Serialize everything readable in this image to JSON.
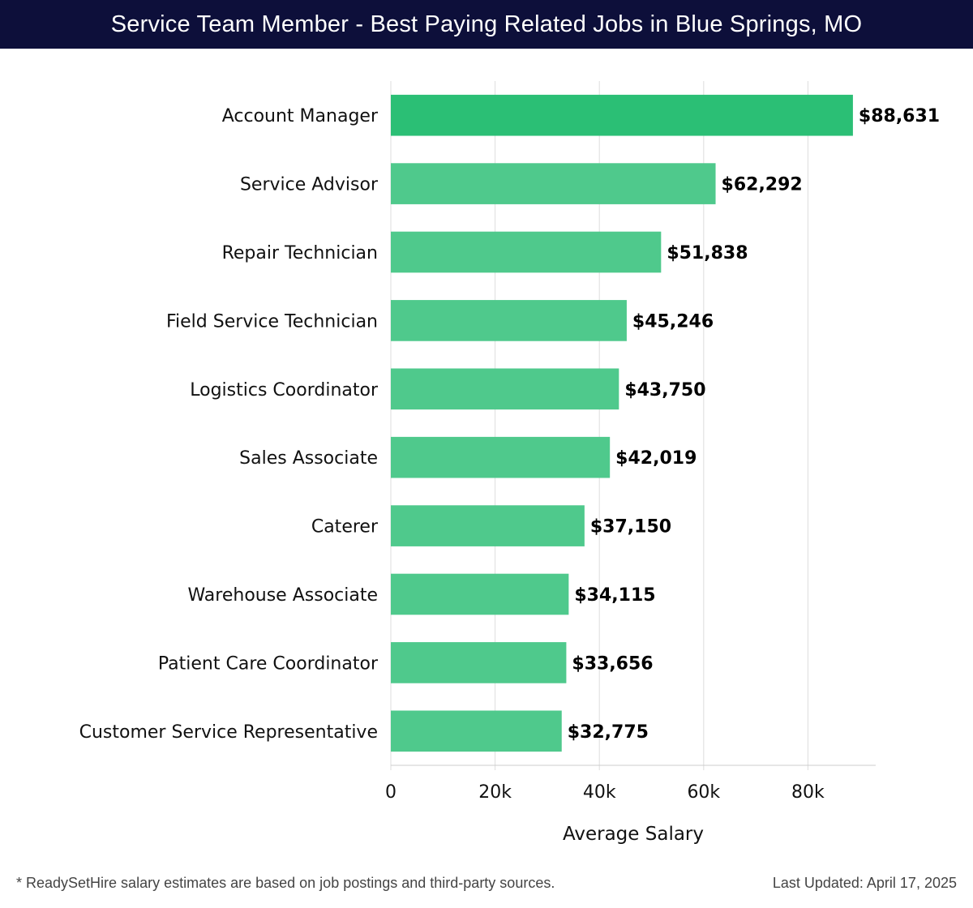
{
  "header": {
    "title": "Service Team Member - Best Paying Related Jobs in Blue Springs, MO"
  },
  "footer": {
    "note": "* ReadySetHire salary estimates are based on job postings and third-party sources.",
    "updated": "Last Updated: April 17, 2025"
  },
  "chart_data": {
    "type": "bar",
    "orientation": "horizontal",
    "categories": [
      "Account Manager",
      "Service Advisor",
      "Repair Technician",
      "Field Service Technician",
      "Logistics Coordinator",
      "Sales Associate",
      "Caterer",
      "Warehouse Associate",
      "Patient Care Coordinator",
      "Customer Service Representative"
    ],
    "values": [
      88631,
      62292,
      51838,
      45246,
      43750,
      42019,
      37150,
      34115,
      33656,
      32775
    ],
    "value_labels": [
      "$88,631",
      "$62,292",
      "$51,838",
      "$45,246",
      "$43,750",
      "$42,019",
      "$37,150",
      "$34,115",
      "$33,656",
      "$32,775"
    ],
    "xlabel": "Average Salary",
    "ylabel": "",
    "xlim": [
      0,
      93000
    ],
    "xticks": [
      0,
      20000,
      40000,
      60000,
      80000
    ],
    "xtick_labels": [
      "0",
      "20k",
      "40k",
      "60k",
      "80k"
    ],
    "grid": true,
    "colors": {
      "top_bar": "#2bbf75",
      "bar": "#4fc98c",
      "grid": "#dddddd",
      "axis": "#cccccc"
    }
  }
}
